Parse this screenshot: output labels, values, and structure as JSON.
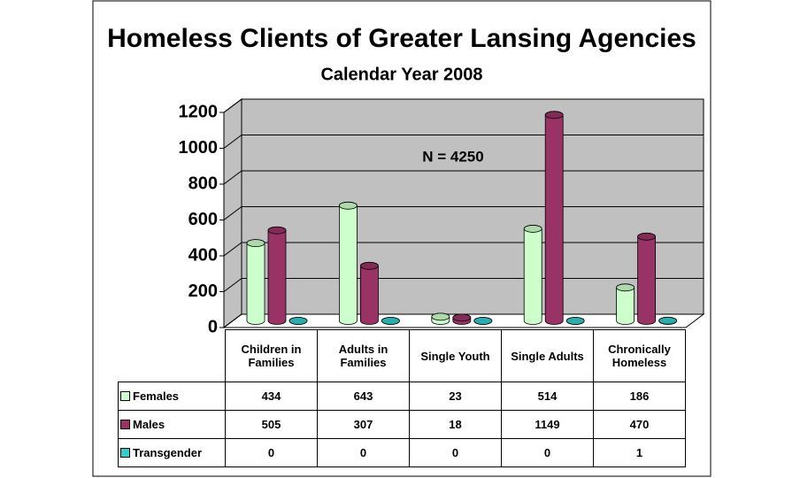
{
  "chart_data": {
    "type": "bar",
    "title": "Homeless Clients of Greater Lansing Agencies",
    "subtitle": "Calendar Year 2008",
    "annotation": "N = 4250",
    "categories": [
      "Children in Families",
      "Adults in Families",
      "Single Youth",
      "Single Adults",
      "Chronically Homeless"
    ],
    "series": [
      {
        "name": "Females",
        "color": "#ccffcc",
        "values": [
          434,
          643,
          23,
          514,
          186
        ]
      },
      {
        "name": "Males",
        "color": "#993366",
        "values": [
          505,
          307,
          18,
          1149,
          470
        ]
      },
      {
        "name": "Transgender",
        "color": "#33cccc",
        "values": [
          0,
          0,
          0,
          0,
          1
        ]
      }
    ],
    "ylim": [
      0,
      1200
    ],
    "yticks": [
      0,
      200,
      400,
      600,
      800,
      1000,
      1200
    ],
    "grid": true
  }
}
